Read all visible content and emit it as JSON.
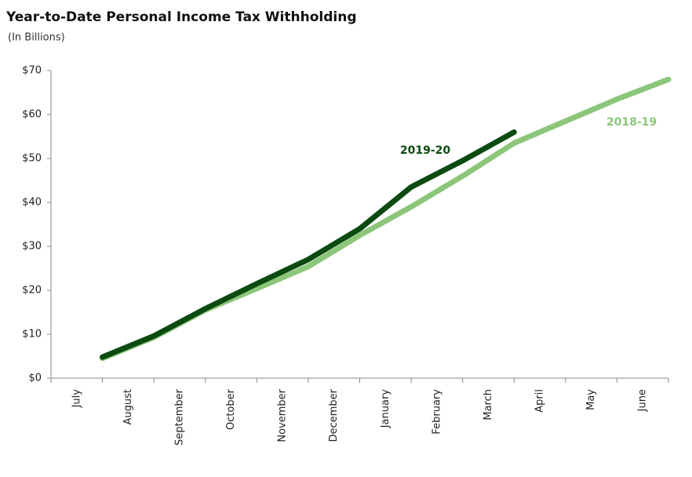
{
  "chart_data": {
    "type": "line",
    "title": "Year-to-Date Personal Income Tax Withholding",
    "subtitle": "(In Billions)",
    "categories": [
      "July",
      "August",
      "September",
      "October",
      "November",
      "December",
      "January",
      "February",
      "March",
      "April",
      "May",
      "June"
    ],
    "series": [
      {
        "name": "2018-19",
        "color": "#8cc67a",
        "values": [
          4.5,
          9.3,
          15.5,
          20.4,
          25.4,
          32.5,
          39,
          46,
          53.5,
          58.5,
          63.5,
          68
        ]
      },
      {
        "name": "2019-20",
        "color": "#0b4a10",
        "values": [
          4.8,
          9.6,
          15.8,
          21.5,
          27,
          34,
          43.5,
          49.5,
          56,
          null,
          null,
          null
        ]
      }
    ],
    "ylim": [
      0,
      70
    ],
    "yticks": [
      {
        "value": 0,
        "label": "$0"
      },
      {
        "value": 10,
        "label": "$10"
      },
      {
        "value": 20,
        "label": "$20"
      },
      {
        "value": 30,
        "label": "$30"
      },
      {
        "value": 40,
        "label": "$40"
      },
      {
        "value": 50,
        "label": "$50"
      },
      {
        "value": 60,
        "label": "$60"
      },
      {
        "value": 70,
        "label": "$70"
      }
    ],
    "grid": false
  }
}
